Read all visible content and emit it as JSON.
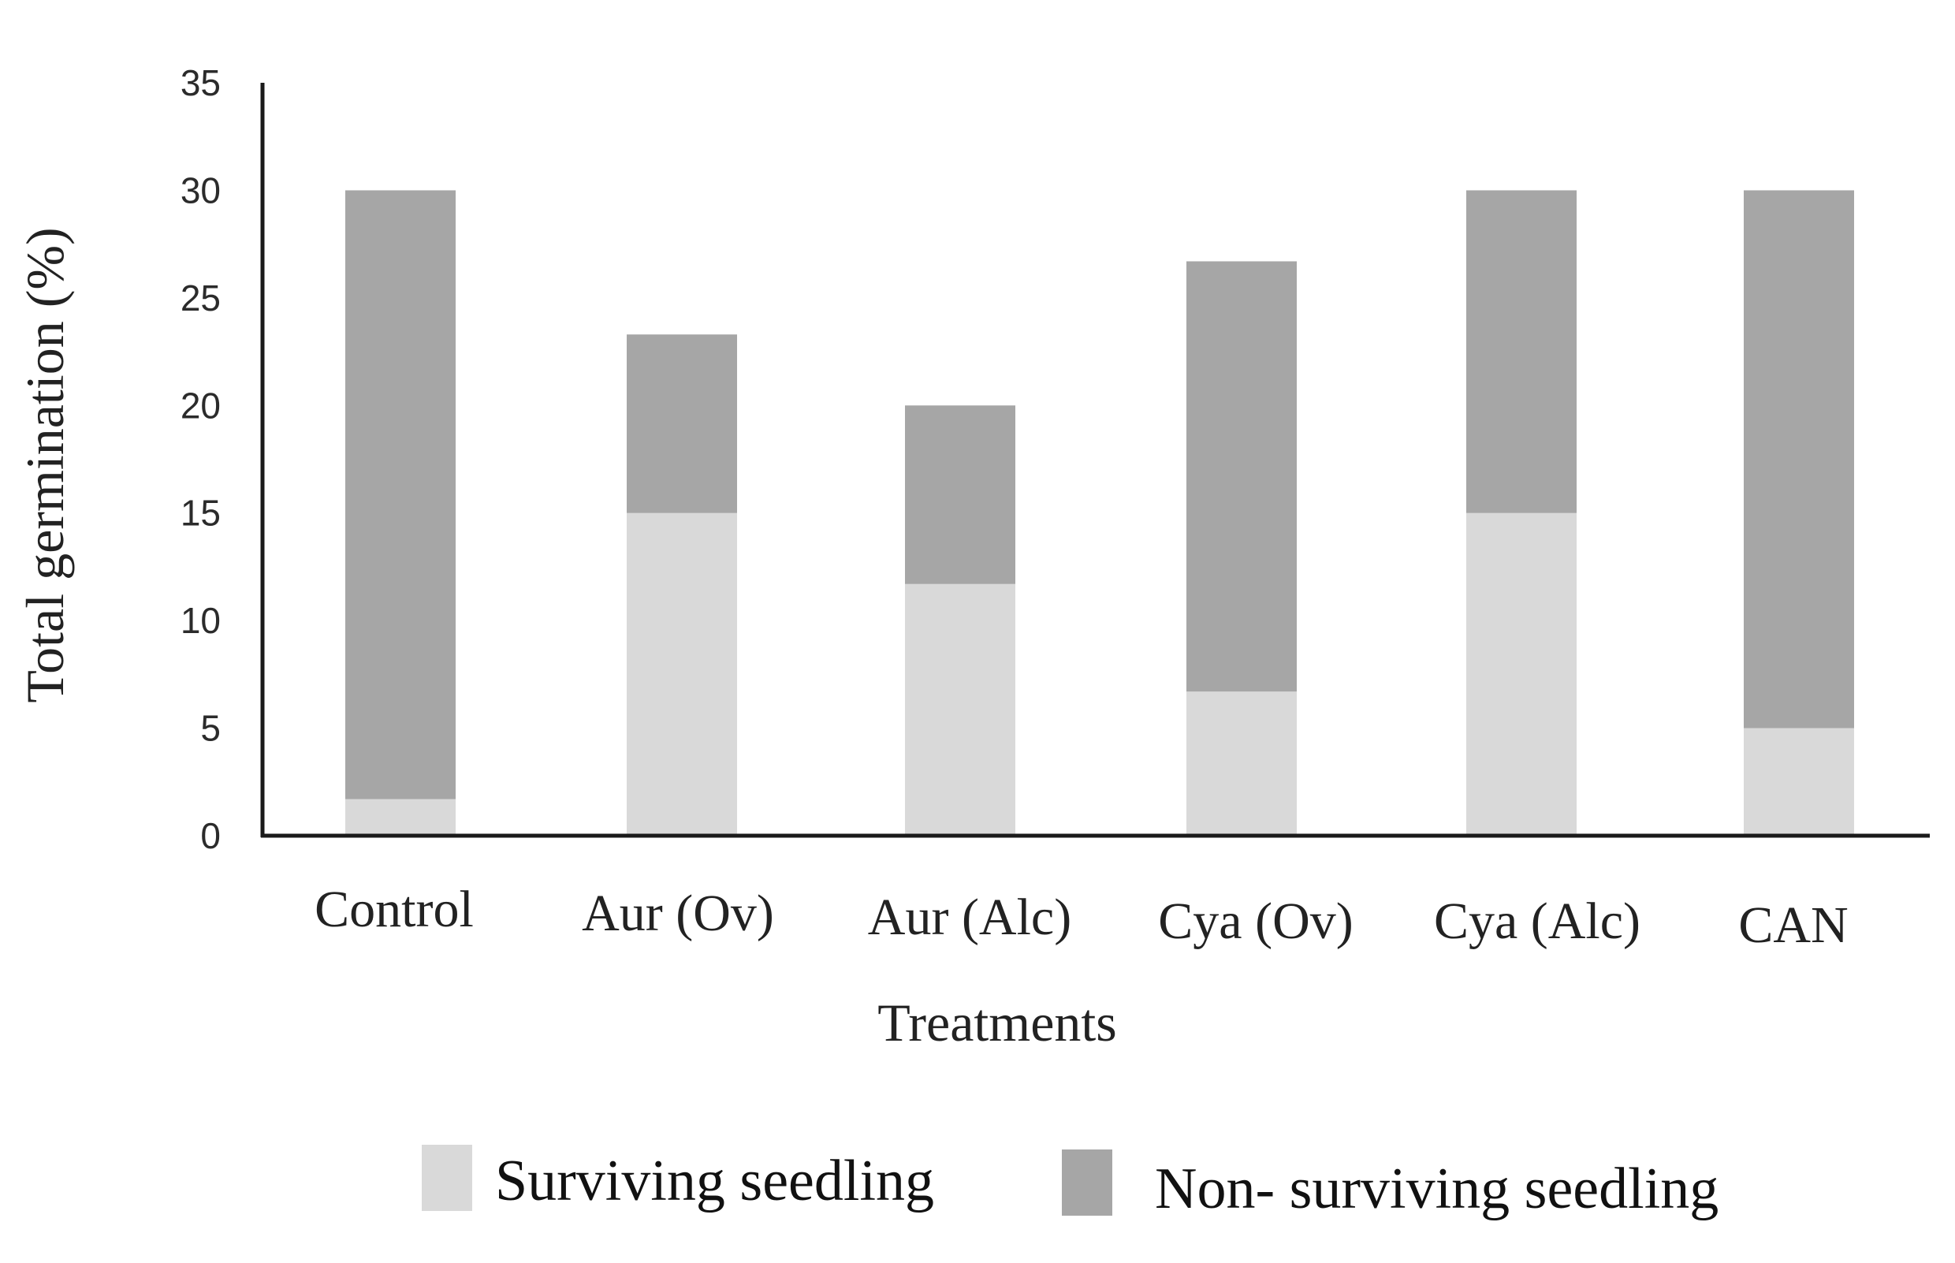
{
  "chart_data": {
    "type": "bar",
    "stacked": true,
    "title": "",
    "xlabel": "Treatments",
    "ylabel": "Total germination (%)",
    "ylim": [
      0,
      35
    ],
    "yticks": [
      0,
      5,
      10,
      15,
      20,
      25,
      30,
      35
    ],
    "categories": [
      "Control",
      "Aur (Ov)",
      "Aur (Alc)",
      "Cya (Ov)",
      "Cya (Alc)",
      "CAN"
    ],
    "series": [
      {
        "name": "Surviving seedling",
        "color": "#d9d9d9",
        "values": [
          1.7,
          15,
          11.7,
          6.7,
          15,
          5
        ]
      },
      {
        "name": "Non- surviving seedling",
        "color": "#a6a6a6",
        "values": [
          28.3,
          8.3,
          8.3,
          20,
          15,
          25
        ]
      }
    ],
    "grid": false,
    "legend_position": "bottom"
  },
  "colors": {
    "axis": "#1a1a1a"
  }
}
